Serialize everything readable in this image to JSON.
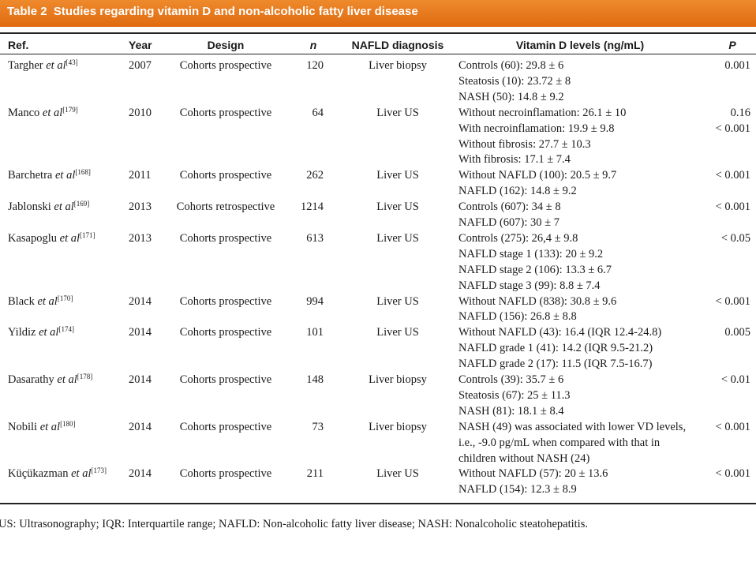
{
  "header": {
    "title": "Table 2  Studies regarding vitamin D and non-alcoholic fatty liver disease"
  },
  "table": {
    "columns": [
      "Ref.",
      "Year",
      "Design",
      "n",
      "NAFLD diagnosis",
      "Vitamin D levels (ng/mL)",
      "P"
    ],
    "rows": [
      {
        "ref": {
          "name": "Targher",
          "etal": "et al",
          "sup": "[43]"
        },
        "year": 2007,
        "design": "Cohorts prospective",
        "n": 120,
        "diagnosis": "Liver biopsy",
        "levels": [
          "Controls (60): 29.8 ± 6",
          "Steatosis (10): 23.72 ± 8",
          "NASH (50): 14.8 ± 9.2"
        ],
        "p": [
          "0.001"
        ]
      },
      {
        "ref": {
          "name": "Manco",
          "etal": "et al",
          "sup": "[179]"
        },
        "year": 2010,
        "design": "Cohorts prospective",
        "n": 64,
        "diagnosis": "Liver US",
        "levels": [
          "Without necroinflamation: 26.1 ± 10",
          "With necroinflamation: 19.9 ± 9.8",
          "Without fibrosis: 27.7 ± 10.3",
          "With fibrosis: 17.1 ± 7.4"
        ],
        "p": [
          "0.16",
          "< 0.001"
        ]
      },
      {
        "ref": {
          "name": "Barchetra",
          "etal": "et al",
          "sup": "[168]"
        },
        "year": 2011,
        "design": "Cohorts prospective",
        "n": 262,
        "diagnosis": "Liver US",
        "levels": [
          "Without NAFLD (100): 20.5 ± 9.7",
          "NAFLD (162): 14.8 ± 9.2"
        ],
        "p": [
          "< 0.001"
        ]
      },
      {
        "ref": {
          "name": "Jablonski",
          "etal": "et al",
          "sup": "[169]"
        },
        "year": 2013,
        "design": "Cohorts retrospective",
        "n": 1214,
        "diagnosis": "Liver US",
        "levels": [
          "Controls (607): 34 ± 8",
          "NAFLD (607): 30 ± 7"
        ],
        "p": [
          "< 0.001"
        ]
      },
      {
        "ref": {
          "name": "Kasapoglu",
          "etal": "et al",
          "sup": "[171]"
        },
        "year": 2013,
        "design": "Cohorts prospective",
        "n": 613,
        "diagnosis": "Liver US",
        "levels": [
          "Controls (275): 26,4 ± 9.8",
          "NAFLD stage 1 (133): 20 ± 9.2",
          "NAFLD stage 2 (106): 13.3 ± 6.7",
          "NAFLD stage 3 (99): 8.8 ± 7.4"
        ],
        "p": [
          "< 0.05"
        ]
      },
      {
        "ref": {
          "name": "Black",
          "etal": "et al",
          "sup": "[170]"
        },
        "year": 2014,
        "design": "Cohorts prospective",
        "n": 994,
        "diagnosis": "Liver US",
        "levels": [
          "Without NAFLD (838): 30.8 ± 9.6",
          "NAFLD (156): 26.8 ± 8.8"
        ],
        "p": [
          "< 0.001"
        ]
      },
      {
        "ref": {
          "name": "Yildiz",
          "etal": "et al",
          "sup": "[174]"
        },
        "year": 2014,
        "design": "Cohorts prospective",
        "n": 101,
        "diagnosis": "Liver US",
        "levels": [
          "Without NAFLD (43): 16.4 (IQR 12.4-24.8)",
          "NAFLD grade 1 (41): 14.2 (IQR 9.5-21.2)",
          "NAFLD grade 2 (17): 11.5 (IQR 7.5-16.7)"
        ],
        "p": [
          "0.005"
        ]
      },
      {
        "ref": {
          "name": "Dasarathy",
          "etal": "et al",
          "sup": "[178]"
        },
        "year": 2014,
        "design": "Cohorts prospective",
        "n": 148,
        "diagnosis": "Liver biopsy",
        "levels": [
          "Controls (39): 35.7 ± 6",
          "Steatosis (67): 25 ± 11.3",
          "NASH (81): 18.1 ± 8.4"
        ],
        "p": [
          "< 0.01"
        ]
      },
      {
        "ref": {
          "name": "Nobili",
          "etal": "et al",
          "sup": "[180]"
        },
        "year": 2014,
        "design": "Cohorts prospective",
        "n": 73,
        "diagnosis": "Liver biopsy",
        "levels": [
          "NASH (49) was associated with lower VD levels,",
          "i.e., -9.0 pg/mL when compared with that in",
          "children without NASH (24)"
        ],
        "p": [
          "< 0.001"
        ]
      },
      {
        "ref": {
          "name": "Küçükazman",
          "etal": "et al",
          "sup": "[173]"
        },
        "year": 2014,
        "design": "Cohorts prospective",
        "n": 211,
        "diagnosis": "Liver US",
        "levels": [
          "Without NAFLD (57): 20 ± 13.6",
          "NAFLD (154): 12.3 ± 8.9"
        ],
        "p": [
          "< 0.001"
        ]
      }
    ]
  },
  "footnote": "US: Ultrasonography; IQR: Interquartile range; NAFLD: Non-alcoholic fatty liver disease; NASH: Nonalcoholic steatohepatitis."
}
